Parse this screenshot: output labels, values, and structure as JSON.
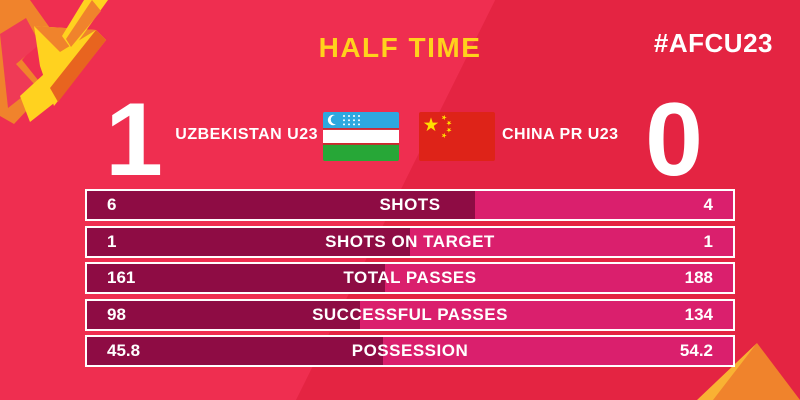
{
  "colors": {
    "bg_left": "#EF2E50",
    "bg_right": "#E42442",
    "bar_home": "#8E0C44",
    "bar_away": "#DA1F6D",
    "accent_yellow": "#FFD21C",
    "flag_uzb_blue": "#2EA8E0",
    "flag_uzb_green": "#27A737",
    "flag_chn_red": "#DE2318",
    "flag_chn_yellow": "#FFDE00"
  },
  "header": {
    "title": "HALF TIME",
    "hashtag": "#AFCU23"
  },
  "scoreboard": {
    "home": {
      "name": "UZBEKISTAN U23",
      "score": "1"
    },
    "away": {
      "name": "CHINA PR U23",
      "score": "0"
    }
  },
  "stats": {
    "rows": [
      {
        "home": "6",
        "label": "SHOTS",
        "away": "4"
      },
      {
        "home": "1",
        "label": "SHOTS ON TARGET",
        "away": "1"
      },
      {
        "home": "161",
        "label": "TOTAL PASSES",
        "away": "188"
      },
      {
        "home": "98",
        "label": "SUCCESSFUL PASSES",
        "away": "134"
      },
      {
        "home": "45.8",
        "label": "POSSESSION",
        "away": "54.2"
      }
    ]
  },
  "chart_data": {
    "type": "bar",
    "title": "HALF TIME",
    "subtitle": "#AFCU23",
    "layout": "horizontal-proportional-stat-bars",
    "categories": [
      "SHOTS",
      "SHOTS ON TARGET",
      "TOTAL PASSES",
      "SUCCESSFUL PASSES",
      "POSSESSION"
    ],
    "series": [
      {
        "name": "UZBEKISTAN U23",
        "score": 1,
        "values": [
          6,
          1,
          161,
          98,
          45.8
        ],
        "color": "#8E0C44"
      },
      {
        "name": "CHINA PR U23",
        "score": 0,
        "values": [
          4,
          1,
          188,
          134,
          54.2
        ],
        "color": "#DA1F6D"
      }
    ],
    "note": "each bar filled left-to-right proportional to home share of row total"
  }
}
